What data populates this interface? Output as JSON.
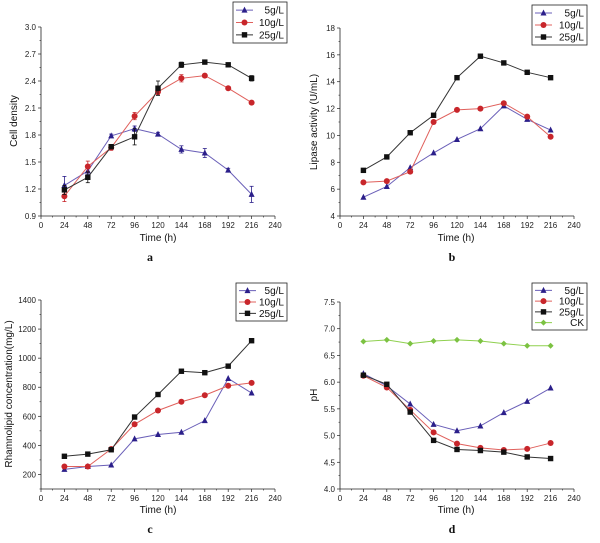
{
  "colors": {
    "5g/L": "#2b1f8a",
    "10g/L": "#c8262b",
    "25g/L": "#111111",
    "CK": "#7cc242"
  },
  "line_colors": {
    "5g/L": "#6a5fb8",
    "10g/L": "#e0605c",
    "25g/L": "#333333",
    "CK": "#8fd04f"
  },
  "markers": {
    "5g/L": "triangle",
    "10g/L": "circle",
    "25g/L": "square",
    "CK": "diamond"
  },
  "chart_data": [
    {
      "type": "line",
      "panel_label": "a",
      "xlabel": "Time (h)",
      "ylabel": "Cell density",
      "xlim": [
        0,
        240
      ],
      "ylim": [
        0.9,
        3.0
      ],
      "xticks": [
        0,
        24,
        48,
        72,
        96,
        120,
        144,
        168,
        192,
        216,
        240
      ],
      "yticks": [
        "0.9",
        "1.2",
        "1.5",
        "1.8",
        "2.1",
        "2.4",
        "2.7",
        "3.0"
      ],
      "legend": "top-right",
      "grid": false,
      "x": [
        24,
        48,
        72,
        96,
        120,
        144,
        168,
        192,
        216
      ],
      "series": [
        {
          "name": "5g/L",
          "values": [
            1.24,
            1.4,
            1.79,
            1.87,
            1.81,
            1.64,
            1.6,
            1.41,
            1.14
          ],
          "errors": [
            0.1,
            0.04,
            0.02,
            0.03,
            0.02,
            0.04,
            0.05,
            0.02,
            0.09
          ]
        },
        {
          "name": "10g/L",
          "values": [
            1.12,
            1.45,
            1.66,
            2.01,
            2.28,
            2.43,
            2.46,
            2.32,
            2.16
          ],
          "errors": [
            0.06,
            0.06,
            0.03,
            0.04,
            0.03,
            0.04,
            0.02,
            0.02,
            0.02
          ]
        },
        {
          "name": "25g/L",
          "values": [
            1.19,
            1.33,
            1.67,
            1.78,
            2.32,
            2.58,
            2.61,
            2.58,
            2.43
          ],
          "errors": [
            0.05,
            0.06,
            0.02,
            0.09,
            0.08,
            0.03,
            0.02,
            0.02,
            0.03
          ]
        }
      ]
    },
    {
      "type": "line",
      "panel_label": "b",
      "xlabel": "Time (h)",
      "ylabel": "Lipase activity (U/mL)",
      "xlim": [
        0,
        240
      ],
      "ylim": [
        4,
        18
      ],
      "xticks": [
        0,
        24,
        48,
        72,
        96,
        120,
        144,
        168,
        192,
        216,
        240
      ],
      "yticks": [
        "4",
        "6",
        "8",
        "10",
        "12",
        "14",
        "16",
        "18"
      ],
      "legend": "top-right",
      "grid": false,
      "x": [
        24,
        48,
        72,
        96,
        120,
        144,
        168,
        192,
        216
      ],
      "series": [
        {
          "name": "5g/L",
          "values": [
            5.4,
            6.2,
            7.6,
            8.7,
            9.7,
            10.5,
            12.2,
            11.2,
            10.4
          ]
        },
        {
          "name": "10g/L",
          "values": [
            6.5,
            6.6,
            7.3,
            11.0,
            11.9,
            12.0,
            12.4,
            11.4,
            9.9
          ]
        },
        {
          "name": "25g/L",
          "values": [
            7.4,
            8.4,
            10.2,
            11.5,
            14.3,
            15.9,
            15.4,
            14.7,
            14.3
          ]
        }
      ]
    },
    {
      "type": "line",
      "panel_label": "c",
      "xlabel": "Time (h)",
      "ylabel": "Rhamnolipid  concentration(mg/L)",
      "xlim": [
        0,
        240
      ],
      "ylim": [
        100,
        1400
      ],
      "xticks": [
        0,
        24,
        48,
        72,
        96,
        120,
        144,
        168,
        192,
        216,
        240
      ],
      "yticks": [
        "200",
        "400",
        "600",
        "800",
        "1000",
        "1200",
        "1400"
      ],
      "legend": "top-right",
      "grid": false,
      "x": [
        24,
        48,
        72,
        96,
        120,
        144,
        168,
        192,
        216
      ],
      "series": [
        {
          "name": "5g/L",
          "values": [
            235,
            255,
            265,
            445,
            475,
            490,
            570,
            860,
            760
          ]
        },
        {
          "name": "10g/L",
          "values": [
            255,
            255,
            375,
            545,
            640,
            700,
            745,
            810,
            830
          ]
        },
        {
          "name": "25g/L",
          "values": [
            325,
            340,
            370,
            595,
            750,
            910,
            900,
            945,
            1120
          ]
        }
      ]
    },
    {
      "type": "line",
      "panel_label": "d",
      "xlabel": "Time (h)",
      "ylabel": "pH",
      "xlim": [
        0,
        240
      ],
      "ylim": [
        4.0,
        7.5
      ],
      "xticks": [
        0,
        24,
        48,
        72,
        96,
        120,
        144,
        168,
        192,
        216,
        240
      ],
      "yticks": [
        "4.0",
        "4.5",
        "5.0",
        "5.5",
        "6.0",
        "6.5",
        "7.0",
        "7.5"
      ],
      "legend": "top-right",
      "grid": false,
      "x": [
        24,
        48,
        72,
        96,
        120,
        144,
        168,
        192,
        216
      ],
      "series": [
        {
          "name": "5g/L",
          "values": [
            6.16,
            5.93,
            5.59,
            5.21,
            5.09,
            5.18,
            5.43,
            5.64,
            5.89
          ]
        },
        {
          "name": "10g/L",
          "values": [
            6.12,
            5.9,
            5.48,
            5.06,
            4.85,
            4.77,
            4.73,
            4.75,
            4.86
          ]
        },
        {
          "name": "25g/L",
          "values": [
            6.13,
            5.96,
            5.44,
            4.91,
            4.74,
            4.72,
            4.69,
            4.6,
            4.57
          ]
        },
        {
          "name": "CK",
          "values": [
            6.76,
            6.79,
            6.72,
            6.77,
            6.79,
            6.77,
            6.72,
            6.68,
            6.68
          ]
        }
      ]
    }
  ]
}
